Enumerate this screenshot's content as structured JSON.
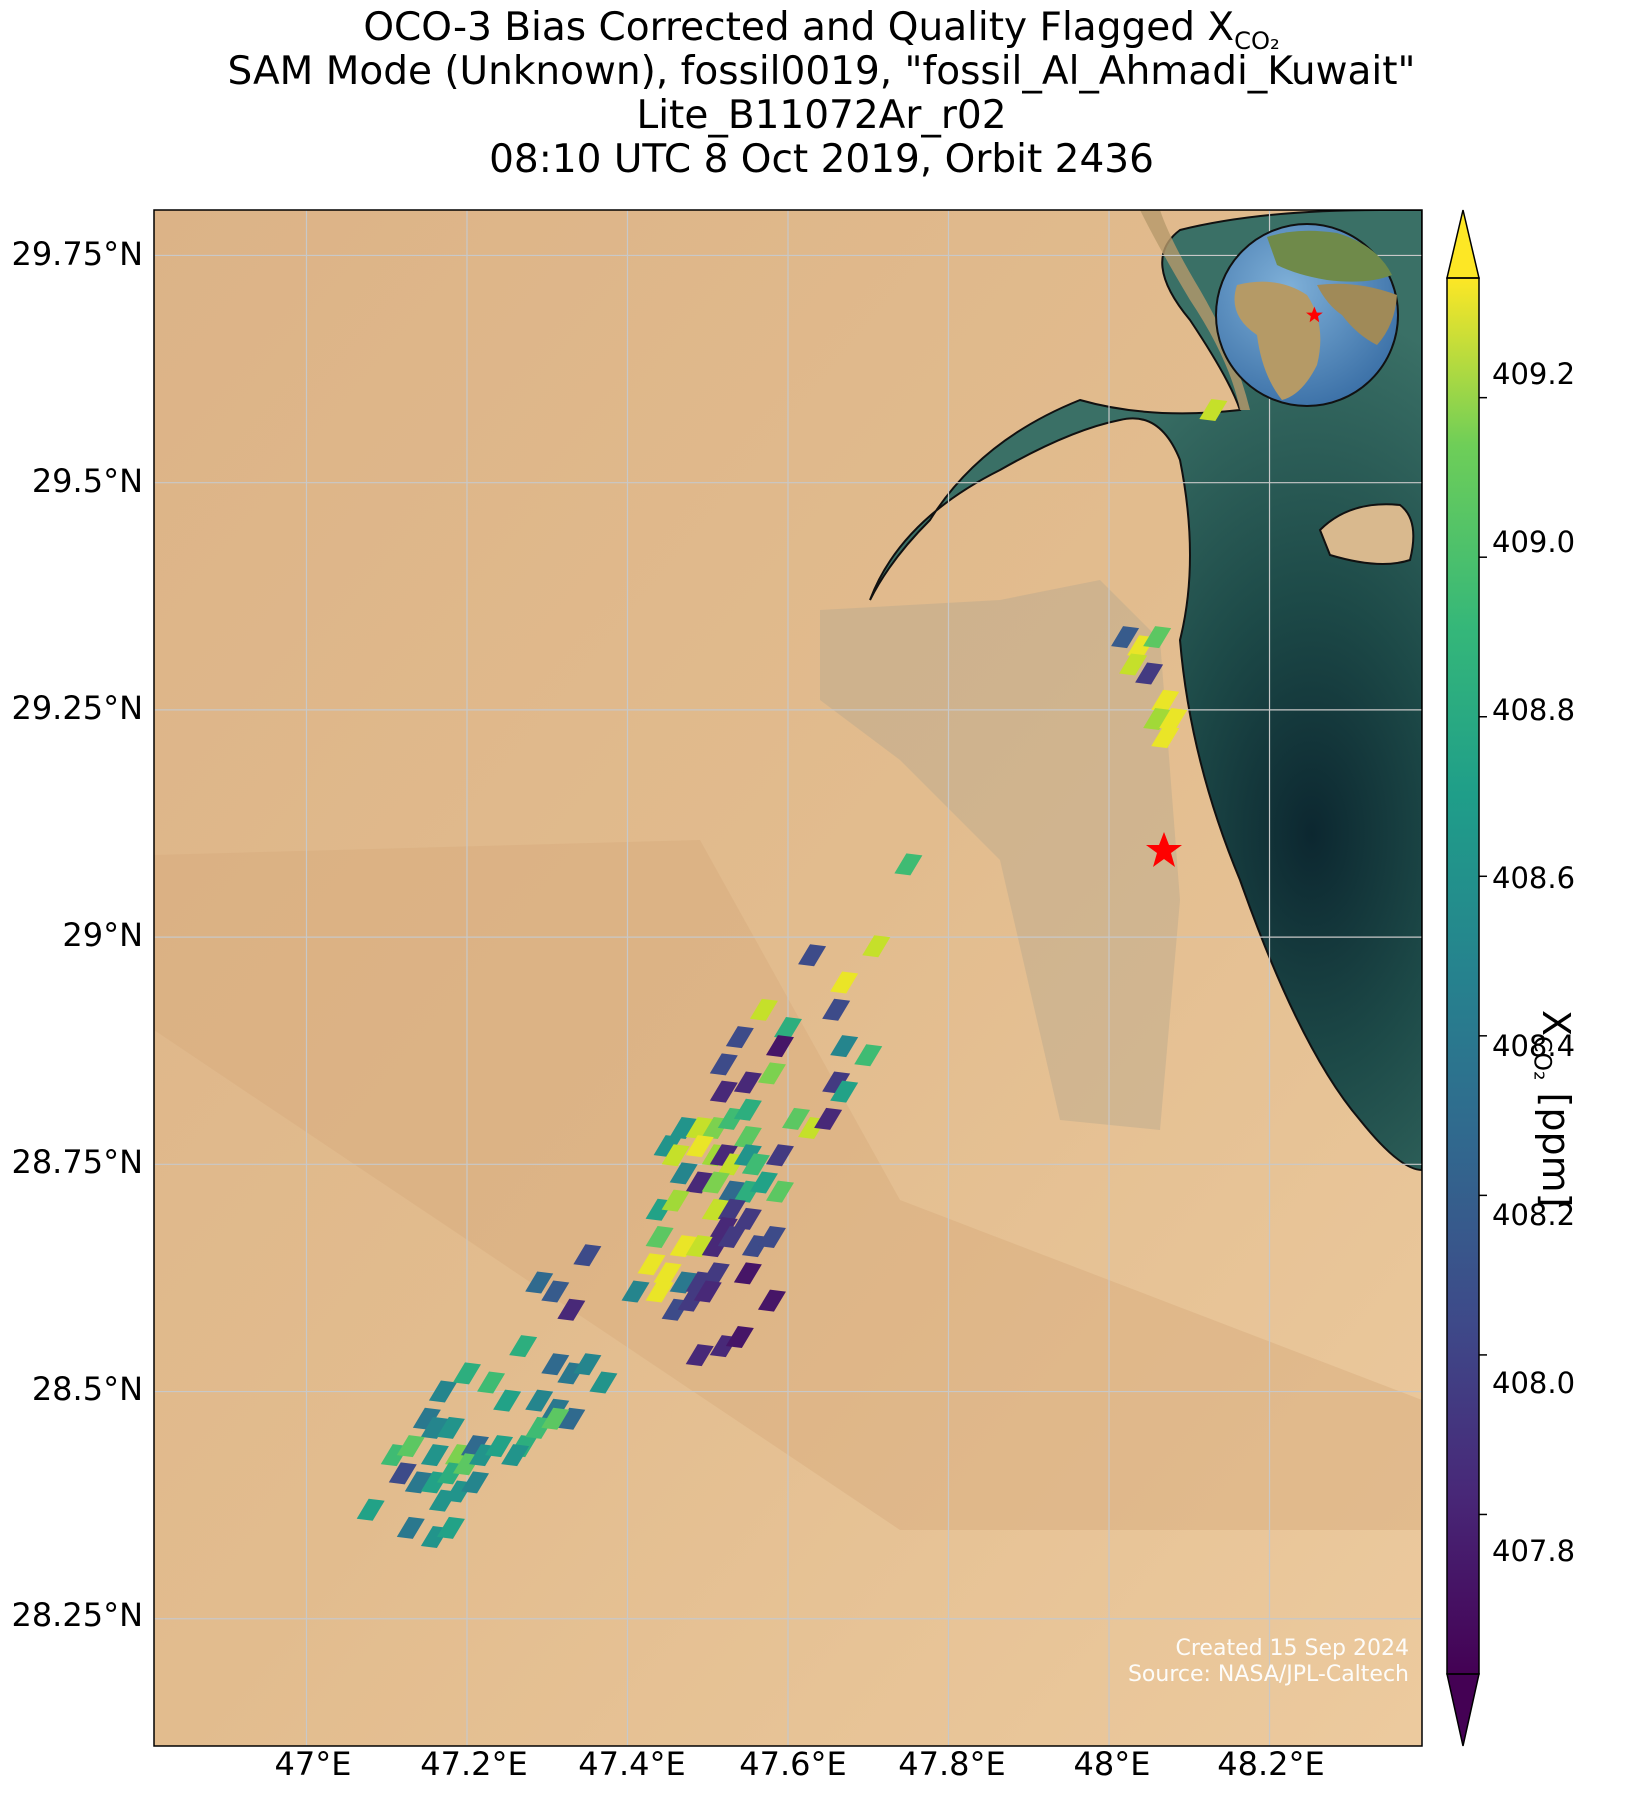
{
  "title": {
    "line1": "OCO-3 Bias Corrected and Quality Flagged X",
    "line1_sub": "CO₂",
    "line2": "SAM Mode (Unknown), fossil0019, \"fossil_Al_Ahmadi_Kuwait\"",
    "line3": "Lite_B11072Ar_r02",
    "line4": "08:10 UTC 8 Oct 2019, Orbit 2436"
  },
  "axes": {
    "lat_ticks": [
      "29.75°N",
      "29.5°N",
      "29.25°N",
      "29°N",
      "28.75°N",
      "28.5°N",
      "28.25°N"
    ],
    "lon_ticks": [
      "47°E",
      "47.2°E",
      "47.4°E",
      "47.6°E",
      "47.8°E",
      "48°E",
      "48.2°E"
    ],
    "grid": true
  },
  "colorbar": {
    "label": "X",
    "label_sub": "CO₂",
    "label_units": " [ppm]",
    "ticks": [
      "409.2",
      "409.0",
      "408.8",
      "408.6",
      "408.4",
      "408.2",
      "408.0",
      "407.8"
    ],
    "range": [
      407.6,
      409.35
    ],
    "extend": "both",
    "colormap": "viridis"
  },
  "site_marker": {
    "color": "#ff0000",
    "shape": "star-icon",
    "lon": 48.08,
    "lat": 29.1
  },
  "credit": {
    "line1": "Created 15 Sep 2024",
    "line2": "Source: NASA/JPL-Caltech"
  },
  "chart_data": {
    "type": "scatter",
    "x_axis": "longitude",
    "y_axis": "latitude",
    "xlim": [
      46.81,
      48.39
    ],
    "ylim": [
      28.11,
      29.8
    ],
    "value_units": "ppm",
    "points": [
      [
        48.13,
        29.58,
        409.2
      ],
      [
        48.02,
        29.33,
        408.1
      ],
      [
        48.04,
        29.32,
        409.3
      ],
      [
        48.06,
        29.33,
        408.9
      ],
      [
        48.03,
        29.3,
        409.2
      ],
      [
        48.05,
        29.29,
        407.9
      ],
      [
        48.07,
        29.26,
        409.3
      ],
      [
        48.06,
        29.24,
        409.1
      ],
      [
        48.08,
        29.24,
        409.3
      ],
      [
        48.07,
        29.22,
        409.3
      ],
      [
        47.75,
        29.08,
        408.8
      ],
      [
        47.71,
        28.99,
        409.2
      ],
      [
        47.63,
        28.98,
        408.0
      ],
      [
        47.67,
        28.95,
        409.3
      ],
      [
        47.57,
        28.92,
        409.2
      ],
      [
        47.6,
        28.9,
        408.7
      ],
      [
        47.66,
        28.92,
        408.0
      ],
      [
        47.54,
        28.89,
        408.0
      ],
      [
        47.59,
        28.88,
        407.7
      ],
      [
        47.67,
        28.88,
        408.4
      ],
      [
        47.7,
        28.87,
        408.8
      ],
      [
        47.52,
        28.86,
        408.0
      ],
      [
        47.58,
        28.85,
        409.0
      ],
      [
        47.52,
        28.83,
        407.8
      ],
      [
        47.55,
        28.84,
        407.8
      ],
      [
        47.66,
        28.84,
        407.9
      ],
      [
        47.67,
        28.83,
        408.6
      ],
      [
        47.61,
        28.8,
        408.9
      ],
      [
        47.63,
        28.79,
        409.2
      ],
      [
        47.47,
        28.79,
        408.5
      ],
      [
        47.45,
        28.77,
        408.5
      ],
      [
        47.49,
        28.79,
        409.2
      ],
      [
        47.51,
        28.79,
        409.0
      ],
      [
        47.53,
        28.8,
        408.8
      ],
      [
        47.55,
        28.81,
        408.7
      ],
      [
        47.55,
        28.78,
        408.9
      ],
      [
        47.65,
        28.8,
        407.8
      ],
      [
        47.46,
        28.76,
        409.2
      ],
      [
        47.49,
        28.77,
        409.3
      ],
      [
        47.51,
        28.76,
        409.1
      ],
      [
        47.52,
        28.76,
        407.8
      ],
      [
        47.53,
        28.75,
        409.2
      ],
      [
        47.55,
        28.76,
        408.5
      ],
      [
        47.56,
        28.75,
        408.8
      ],
      [
        47.59,
        28.76,
        407.9
      ],
      [
        47.47,
        28.74,
        408.4
      ],
      [
        47.49,
        28.73,
        407.8
      ],
      [
        47.51,
        28.73,
        409.0
      ],
      [
        47.53,
        28.72,
        408.2
      ],
      [
        47.55,
        28.72,
        408.7
      ],
      [
        47.57,
        28.73,
        408.6
      ],
      [
        47.59,
        28.72,
        408.9
      ],
      [
        47.44,
        28.7,
        408.6
      ],
      [
        47.46,
        28.71,
        409.1
      ],
      [
        47.51,
        28.7,
        409.2
      ],
      [
        47.53,
        28.7,
        407.9
      ],
      [
        47.55,
        28.69,
        407.9
      ],
      [
        47.52,
        28.68,
        407.8
      ],
      [
        47.44,
        28.67,
        408.9
      ],
      [
        47.47,
        28.66,
        409.3
      ],
      [
        47.49,
        28.66,
        409.2
      ],
      [
        47.51,
        28.66,
        407.8
      ],
      [
        47.53,
        28.67,
        407.9
      ],
      [
        47.56,
        28.66,
        408.0
      ],
      [
        47.58,
        28.67,
        408.0
      ],
      [
        47.35,
        28.65,
        408.0
      ],
      [
        47.43,
        28.64,
        409.3
      ],
      [
        47.45,
        28.63,
        409.3
      ],
      [
        47.47,
        28.62,
        408.3
      ],
      [
        47.49,
        28.62,
        407.9
      ],
      [
        47.51,
        28.63,
        407.9
      ],
      [
        47.55,
        28.63,
        407.7
      ],
      [
        47.41,
        28.61,
        408.4
      ],
      [
        47.44,
        28.61,
        409.3
      ],
      [
        47.29,
        28.62,
        408.2
      ],
      [
        47.31,
        28.61,
        408.1
      ],
      [
        47.33,
        28.59,
        407.8
      ],
      [
        47.46,
        28.59,
        408.0
      ],
      [
        47.48,
        28.6,
        407.9
      ],
      [
        47.5,
        28.61,
        407.8
      ],
      [
        47.58,
        28.6,
        407.7
      ],
      [
        47.27,
        28.55,
        408.7
      ],
      [
        47.49,
        28.54,
        407.8
      ],
      [
        47.52,
        28.55,
        407.8
      ],
      [
        47.54,
        28.56,
        407.7
      ],
      [
        47.31,
        28.53,
        408.2
      ],
      [
        47.33,
        28.52,
        408.3
      ],
      [
        47.35,
        28.53,
        408.4
      ],
      [
        47.37,
        28.51,
        408.5
      ],
      [
        47.17,
        28.5,
        408.4
      ],
      [
        47.2,
        28.52,
        408.7
      ],
      [
        47.23,
        28.51,
        408.8
      ],
      [
        47.25,
        28.49,
        408.6
      ],
      [
        47.29,
        28.49,
        408.4
      ],
      [
        47.31,
        28.48,
        408.3
      ],
      [
        47.33,
        28.47,
        408.2
      ],
      [
        47.15,
        28.47,
        408.3
      ],
      [
        47.16,
        28.46,
        408.4
      ],
      [
        47.18,
        28.46,
        408.5
      ],
      [
        47.11,
        28.43,
        408.8
      ],
      [
        47.13,
        28.44,
        408.9
      ],
      [
        47.16,
        28.43,
        408.5
      ],
      [
        47.19,
        28.43,
        409.0
      ],
      [
        47.21,
        28.44,
        408.2
      ],
      [
        47.27,
        28.44,
        408.7
      ],
      [
        47.29,
        28.46,
        408.8
      ],
      [
        47.31,
        28.47,
        408.9
      ],
      [
        47.12,
        28.41,
        408.0
      ],
      [
        47.14,
        28.4,
        408.3
      ],
      [
        47.16,
        28.4,
        408.6
      ],
      [
        47.18,
        28.41,
        408.7
      ],
      [
        47.2,
        28.42,
        408.9
      ],
      [
        47.22,
        28.43,
        408.5
      ],
      [
        47.24,
        28.44,
        408.6
      ],
      [
        47.26,
        28.43,
        408.5
      ],
      [
        47.17,
        28.38,
        408.5
      ],
      [
        47.19,
        28.39,
        408.5
      ],
      [
        47.21,
        28.4,
        408.4
      ],
      [
        47.08,
        28.37,
        408.6
      ],
      [
        47.13,
        28.35,
        408.3
      ],
      [
        47.16,
        28.34,
        408.5
      ],
      [
        47.18,
        28.35,
        408.6
      ]
    ]
  }
}
